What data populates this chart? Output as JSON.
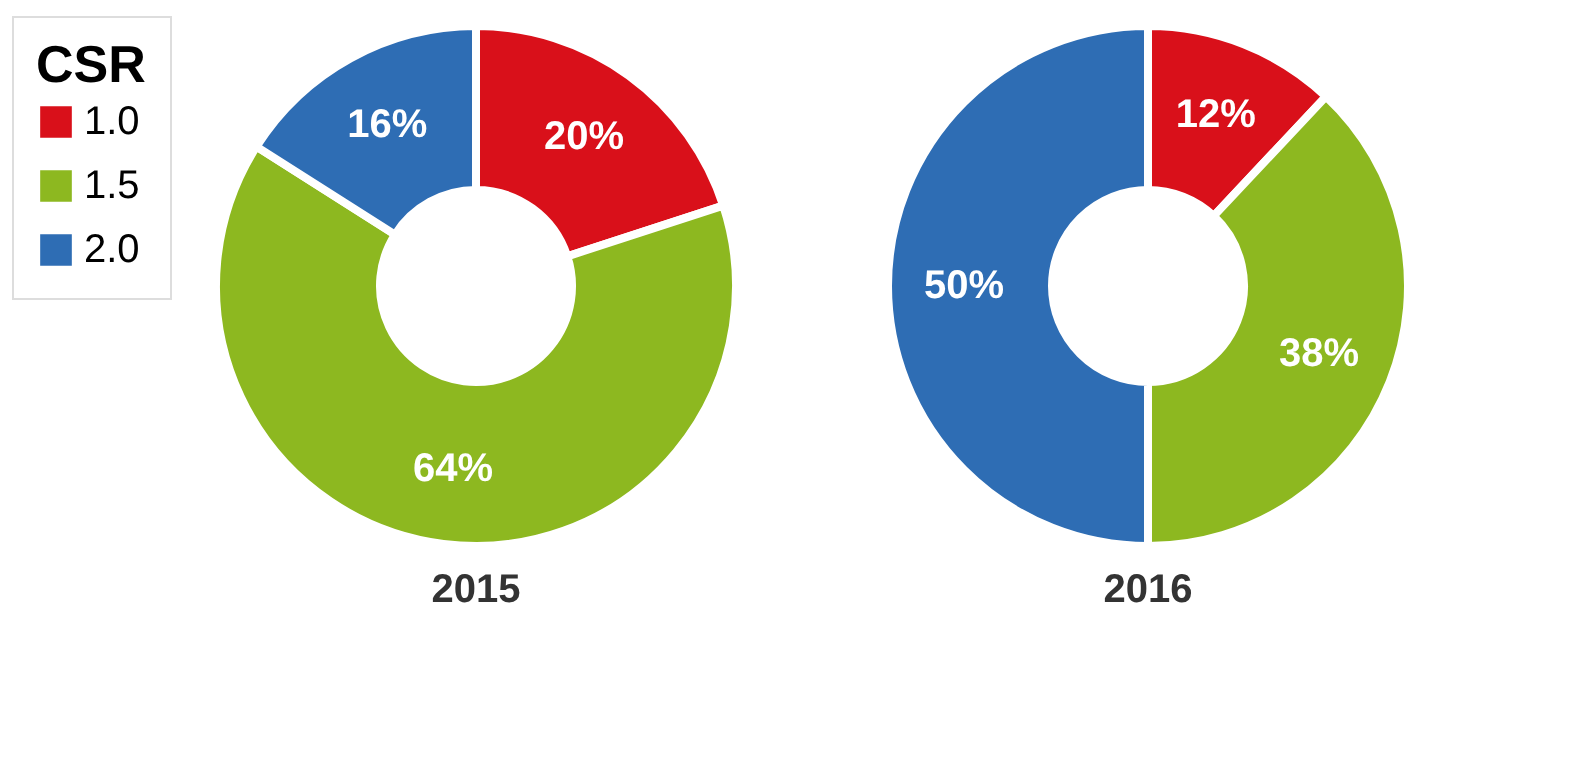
{
  "chart_data": [
    {
      "type": "donut",
      "title": "2015",
      "legend_title": "CSR",
      "legend": "left",
      "categories": [
        "1.0",
        "1.5",
        "2.0"
      ],
      "values": [
        20,
        64,
        16
      ],
      "colors": [
        "#d9101a",
        "#8db820",
        "#2e6db4"
      ],
      "value_labels": [
        "20%",
        "64%",
        "16%"
      ]
    },
    {
      "type": "donut",
      "title": "2016",
      "categories": [
        null,
        null,
        null
      ],
      "values": [
        12,
        38,
        50
      ],
      "colors": [
        "#d9101a",
        "#8db820",
        "#2e6db4"
      ],
      "value_labels": [
        "12%",
        "38%",
        "50%"
      ]
    }
  ]
}
